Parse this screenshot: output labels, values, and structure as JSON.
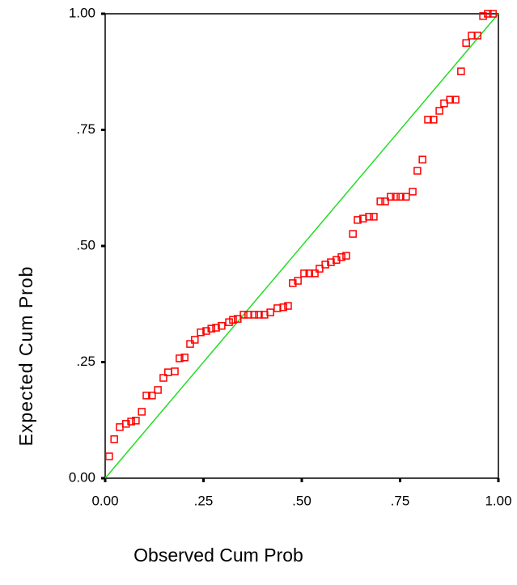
{
  "chart_data": {
    "type": "scatter",
    "x_label": "Observed Cum Prob",
    "y_label": "Expected Cum Prob",
    "xlim": [
      0,
      1
    ],
    "ylim": [
      0,
      1
    ],
    "xticks": [
      {
        "value": 0,
        "label": "0.00"
      },
      {
        "value": 0.25,
        "label": ".25"
      },
      {
        "value": 0.5,
        "label": ".50"
      },
      {
        "value": 0.75,
        "label": ".75"
      },
      {
        "value": 1,
        "label": "1.00"
      }
    ],
    "yticks": [
      {
        "value": 0,
        "label": "0.00"
      },
      {
        "value": 0.25,
        "label": ".25"
      },
      {
        "value": 0.5,
        "label": ".50"
      },
      {
        "value": 0.75,
        "label": ".75"
      },
      {
        "value": 1,
        "label": "1.00"
      }
    ],
    "color": "#ff0000",
    "reference_line_color": "#22dd22",
    "x": [
      0.01,
      0.023,
      0.037,
      0.053,
      0.066,
      0.078,
      0.093,
      0.105,
      0.119,
      0.134,
      0.148,
      0.16,
      0.177,
      0.189,
      0.202,
      0.216,
      0.228,
      0.243,
      0.257,
      0.27,
      0.282,
      0.296,
      0.315,
      0.325,
      0.337,
      0.352,
      0.364,
      0.379,
      0.391,
      0.405,
      0.42,
      0.438,
      0.453,
      0.465,
      0.477,
      0.49,
      0.506,
      0.519,
      0.533,
      0.545,
      0.56,
      0.574,
      0.588,
      0.601,
      0.613,
      0.63,
      0.642,
      0.656,
      0.671,
      0.683,
      0.7,
      0.712,
      0.726,
      0.739,
      0.751,
      0.765,
      0.782,
      0.794,
      0.807,
      0.821,
      0.835,
      0.85,
      0.862,
      0.877,
      0.891,
      0.905,
      0.918,
      0.932,
      0.947,
      0.961,
      0.973,
      0.986
    ],
    "values": [
      0.047,
      0.084,
      0.11,
      0.117,
      0.122,
      0.124,
      0.143,
      0.178,
      0.178,
      0.19,
      0.216,
      0.228,
      0.23,
      0.258,
      0.26,
      0.289,
      0.298,
      0.314,
      0.317,
      0.322,
      0.324,
      0.328,
      0.336,
      0.341,
      0.343,
      0.352,
      0.352,
      0.352,
      0.352,
      0.352,
      0.357,
      0.366,
      0.368,
      0.371,
      0.42,
      0.425,
      0.441,
      0.441,
      0.441,
      0.451,
      0.46,
      0.465,
      0.47,
      0.476,
      0.479,
      0.526,
      0.556,
      0.559,
      0.563,
      0.563,
      0.596,
      0.596,
      0.606,
      0.606,
      0.606,
      0.606,
      0.617,
      0.662,
      0.686,
      0.772,
      0.772,
      0.791,
      0.807,
      0.815,
      0.815,
      0.876,
      0.937,
      0.953,
      0.953,
      0.995,
      1.0,
      1.0
    ]
  }
}
